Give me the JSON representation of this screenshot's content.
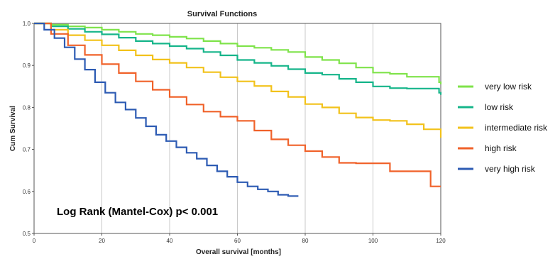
{
  "chart_data": {
    "type": "line",
    "title": "Survival Functions",
    "xlabel": "Overall survival [months]",
    "ylabel": "Cum Survival",
    "xlim": [
      0,
      120
    ],
    "ylim": [
      0.5,
      1.0
    ],
    "x_ticks": [
      "0",
      "20",
      "40",
      "60",
      "80",
      "100",
      "120"
    ],
    "y_ticks": [
      "0.5",
      "0.6",
      "0.7",
      "0.8",
      "0.9",
      "1.0"
    ],
    "x_tick_values": [
      0,
      20,
      40,
      60,
      80,
      100,
      120
    ],
    "y_tick_values": [
      0.5,
      0.6,
      0.7,
      0.8,
      0.9,
      1.0
    ],
    "grid": "vertical",
    "legend_position": "right",
    "annotation": "Log Rank (Mantel-Cox) p< 0.001",
    "series": [
      {
        "name": "very low risk",
        "color": "#7fe34a",
        "x": [
          0,
          5,
          10,
          15,
          20,
          25,
          30,
          35,
          40,
          45,
          50,
          55,
          60,
          65,
          70,
          75,
          80,
          85,
          90,
          95,
          100,
          105,
          110,
          115,
          119.5,
          120
        ],
        "y": [
          1.0,
          0.997,
          0.993,
          0.99,
          0.985,
          0.98,
          0.975,
          0.972,
          0.968,
          0.964,
          0.958,
          0.952,
          0.946,
          0.942,
          0.937,
          0.932,
          0.92,
          0.913,
          0.905,
          0.895,
          0.883,
          0.88,
          0.873,
          0.873,
          0.86,
          0.855
        ]
      },
      {
        "name": "low risk",
        "color": "#16b58a",
        "x": [
          0,
          5,
          10,
          15,
          20,
          25,
          30,
          35,
          40,
          45,
          50,
          55,
          60,
          65,
          70,
          75,
          80,
          85,
          90,
          95,
          100,
          105,
          110,
          115,
          119.5,
          120
        ],
        "y": [
          1.0,
          0.993,
          0.987,
          0.98,
          0.974,
          0.966,
          0.958,
          0.952,
          0.946,
          0.94,
          0.932,
          0.924,
          0.913,
          0.906,
          0.899,
          0.891,
          0.882,
          0.878,
          0.868,
          0.86,
          0.85,
          0.846,
          0.845,
          0.845,
          0.835,
          0.83
        ]
      },
      {
        "name": "intermediate risk",
        "color": "#f2c21b",
        "x": [
          0,
          5,
          10,
          15,
          20,
          25,
          30,
          35,
          40,
          45,
          50,
          55,
          60,
          65,
          70,
          75,
          80,
          85,
          90,
          95,
          100,
          105,
          110,
          115,
          119.5,
          120
        ],
        "y": [
          1.0,
          0.985,
          0.972,
          0.96,
          0.948,
          0.936,
          0.924,
          0.914,
          0.906,
          0.895,
          0.884,
          0.872,
          0.862,
          0.851,
          0.838,
          0.825,
          0.808,
          0.8,
          0.786,
          0.776,
          0.77,
          0.768,
          0.76,
          0.748,
          0.748,
          0.728
        ]
      },
      {
        "name": "high risk",
        "color": "#f0622a",
        "x": [
          0,
          5,
          10,
          15,
          20,
          25,
          30,
          35,
          40,
          45,
          50,
          55,
          60,
          65,
          70,
          75,
          80,
          85,
          90,
          95,
          100,
          105,
          110,
          115,
          117,
          120
        ],
        "y": [
          1.0,
          0.975,
          0.948,
          0.925,
          0.903,
          0.882,
          0.862,
          0.842,
          0.825,
          0.807,
          0.79,
          0.778,
          0.768,
          0.745,
          0.724,
          0.71,
          0.696,
          0.682,
          0.668,
          0.667,
          0.667,
          0.648,
          0.648,
          0.648,
          0.612,
          0.612
        ]
      },
      {
        "name": "very high risk",
        "color": "#2d5bb3",
        "x": [
          0,
          3,
          6,
          9,
          12,
          15,
          18,
          21,
          24,
          27,
          30,
          33,
          36,
          39,
          42,
          45,
          48,
          51,
          54,
          57,
          60,
          63,
          66,
          69,
          72,
          75,
          78
        ],
        "y": [
          1.0,
          0.985,
          0.965,
          0.943,
          0.915,
          0.89,
          0.86,
          0.835,
          0.812,
          0.795,
          0.775,
          0.755,
          0.735,
          0.72,
          0.705,
          0.692,
          0.678,
          0.662,
          0.648,
          0.635,
          0.622,
          0.612,
          0.605,
          0.6,
          0.592,
          0.589,
          0.589
        ]
      }
    ]
  }
}
